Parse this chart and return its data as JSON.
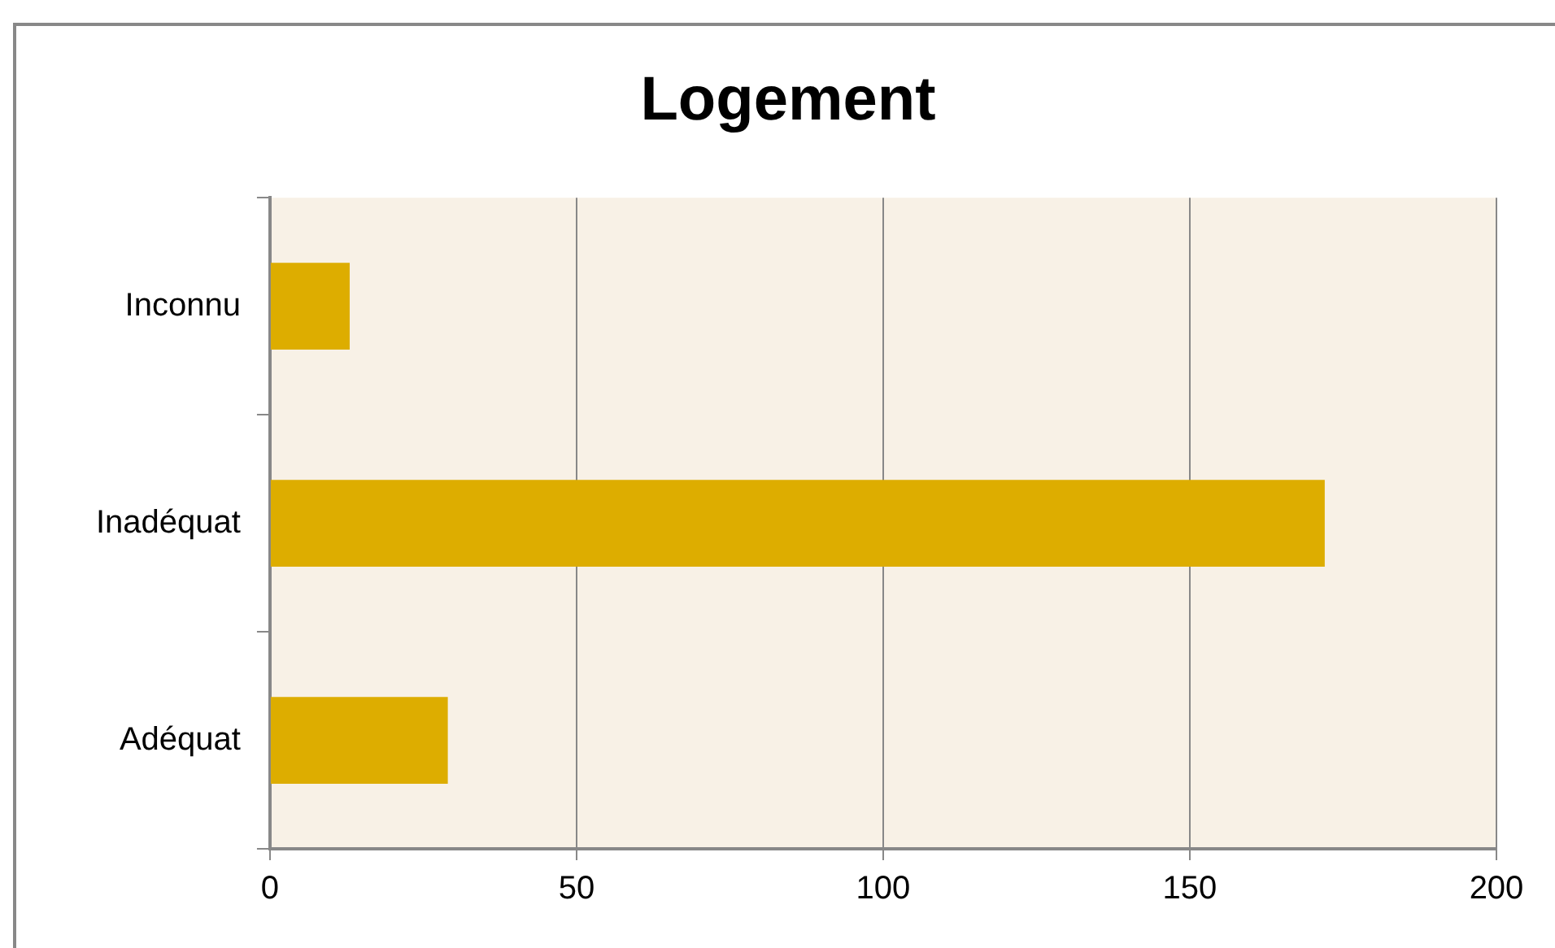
{
  "chart_data": {
    "type": "bar",
    "orientation": "horizontal",
    "title": "Logement",
    "categories": [
      "Inconnu",
      "Inadéquat",
      "Adéquat"
    ],
    "values": [
      13,
      172,
      29
    ],
    "color": "#ddad00",
    "xlim": [
      0,
      200
    ],
    "xticks": [
      0,
      50,
      100,
      150,
      200
    ],
    "grid": "x",
    "legend": false
  }
}
